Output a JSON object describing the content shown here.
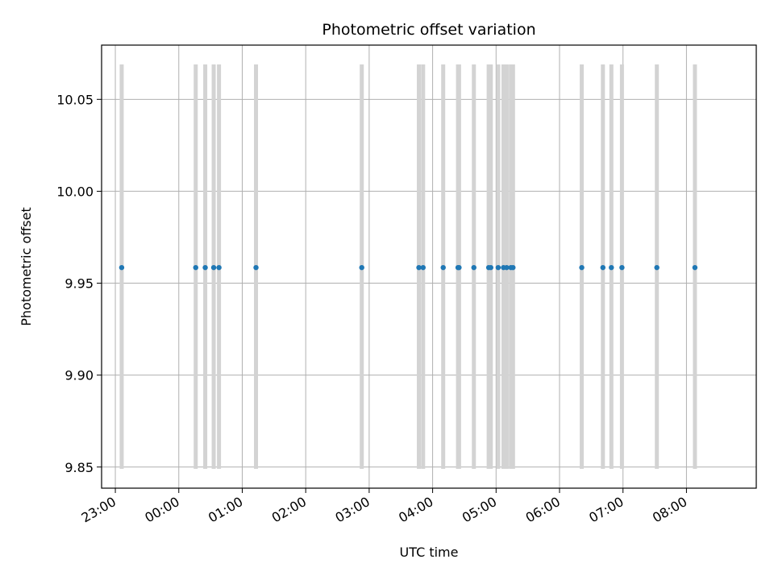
{
  "chart_data": {
    "type": "scatter",
    "title": "Photometric offset variation",
    "xlabel": "UTC time",
    "ylabel": "Photometric offset",
    "x_ticks": [
      "23:00",
      "00:00",
      "01:00",
      "02:00",
      "03:00",
      "04:00",
      "05:00",
      "06:00",
      "07:00",
      "08:00"
    ],
    "y_ticks": [
      "9.85",
      "9.90",
      "9.95",
      "10.00",
      "10.05"
    ],
    "xlim": [
      "22:47",
      "09:06"
    ],
    "ylim": [
      9.8385,
      10.0795
    ],
    "grid": true,
    "point_color": "#1f77b4",
    "errorbar_color": "#d3d3d3",
    "series": [
      {
        "x": [
          "23:06",
          "00:16",
          "00:25",
          "00:33",
          "00:38",
          "01:13",
          "02:53",
          "03:47",
          "03:51",
          "04:10",
          "04:24",
          "04:25",
          "04:39",
          "04:53",
          "04:55",
          "05:02",
          "05:07",
          "05:10",
          "05:14",
          "05:16",
          "06:21",
          "06:41",
          "06:49",
          "06:59",
          "07:32",
          "08:08"
        ],
        "y": [
          9.9585,
          9.9585,
          9.9585,
          9.9585,
          9.9585,
          9.9585,
          9.9585,
          9.9585,
          9.9585,
          9.9585,
          9.9585,
          9.9585,
          9.9585,
          9.9585,
          9.9585,
          9.9585,
          9.9585,
          9.9585,
          9.9585,
          9.9585,
          9.9585,
          9.9585,
          9.9585,
          9.9585,
          9.9585,
          9.9585
        ],
        "err_low": 9.849,
        "err_high": 10.069
      }
    ]
  }
}
